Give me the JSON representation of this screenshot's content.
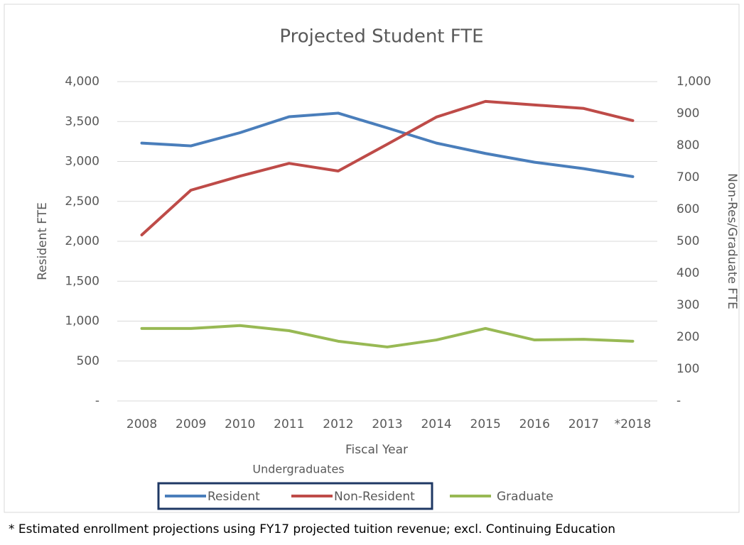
{
  "chart_data": {
    "type": "line",
    "title": "Projected Student FTE",
    "x_label": "Fiscal Year",
    "y_label": "Resident  FTE",
    "y2_label": "Non-Res/Graduate FTE",
    "categories": [
      "2008",
      "2009",
      "2010",
      "2011",
      "2012",
      "2013",
      "2014",
      "2015",
      "2016",
      "2017",
      "*2018"
    ],
    "series": [
      {
        "name": "Resident",
        "color": "#4a7ebb",
        "axis": "y",
        "values": [
          3230,
          3195,
          3360,
          3560,
          3605,
          3420,
          3230,
          3100,
          2990,
          2910,
          2810
        ]
      },
      {
        "name": "Non-Resident",
        "color": "#be4b48",
        "axis": "y2",
        "values": [
          520,
          660,
          704,
          744,
          720,
          804,
          889,
          938,
          927,
          916,
          878
        ]
      },
      {
        "name": "Graduate",
        "color": "#98b954",
        "axis": "y2",
        "values": [
          227,
          227,
          236,
          220,
          187,
          169,
          191,
          227,
          191,
          193,
          187
        ]
      }
    ],
    "legend_group": "Undergraduates",
    "ylim": [
      0,
      4000
    ],
    "yticks": [
      {
        "value": 0,
        "label": "-"
      },
      500,
      {
        "value": 1000,
        "label": "1,000"
      },
      {
        "value": 1500,
        "label": "1,500"
      },
      {
        "value": 2000,
        "label": "2,000"
      },
      {
        "value": 2500,
        "label": "2,500"
      },
      {
        "value": 3000,
        "label": "3,000"
      },
      {
        "value": 3500,
        "label": "3,500"
      },
      {
        "value": 4000,
        "label": "4,000"
      }
    ],
    "y2lim": [
      0,
      1000
    ],
    "y2ticks": [
      {
        "value": 0,
        "label": "-"
      },
      100,
      200,
      300,
      400,
      500,
      600,
      700,
      800,
      900,
      {
        "value": 1000,
        "label": "1,000"
      }
    ],
    "grid": true,
    "note": "* Estimated enrollment projections using FY17 projected tuition revenue; excl. Continuing Education"
  }
}
